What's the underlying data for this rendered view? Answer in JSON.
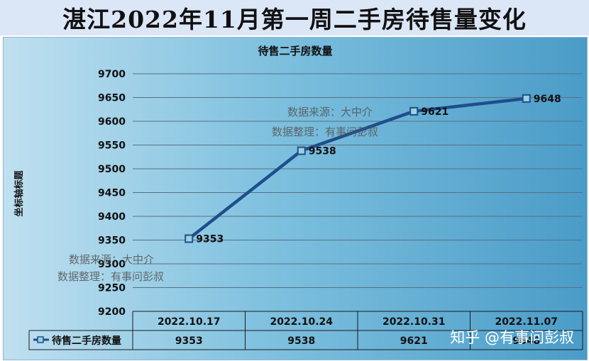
{
  "header": {
    "title": "湛江2022年11月第一周二手房待售量变化"
  },
  "chart_data": {
    "type": "line",
    "title": "待售二手房数量",
    "ylabel": "坐标轴标题",
    "categories": [
      "2022.10.17",
      "2022.10.24",
      "2022.10.31",
      "2022.11.07"
    ],
    "series": [
      {
        "name": "待售二手房数量",
        "values": [
          9353,
          9538,
          9621,
          9648
        ]
      }
    ],
    "ylim": [
      9200,
      9700
    ],
    "yticks": [
      9200,
      9250,
      9300,
      9350,
      9400,
      9450,
      9500,
      9550,
      9600,
      9650,
      9700
    ],
    "grid": true,
    "line_color": "#1f4e8c",
    "legend": "data-table"
  },
  "watermarks": [
    {
      "line1": "数据来源：大中介",
      "line2": "数据整理：有事问彭叔"
    },
    {
      "line1": "数据来源：大中介",
      "line2": "数据整理：有事问彭叔"
    }
  ],
  "credit": "知乎 @有事问彭叔"
}
